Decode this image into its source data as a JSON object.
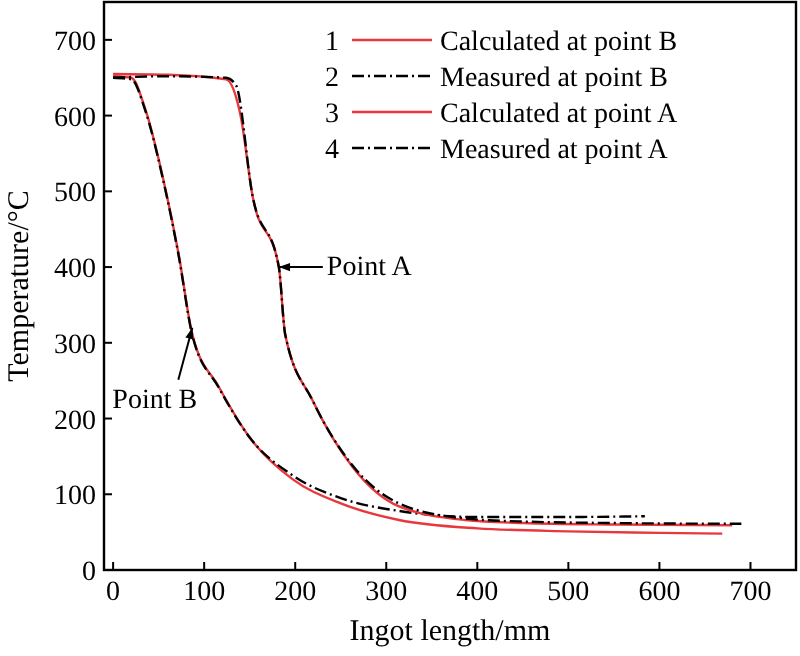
{
  "chart_data": {
    "type": "line",
    "xlabel": "Ingot length/mm",
    "ylabel": "Temperature/°C",
    "xlim": [
      -10,
      750
    ],
    "ylim": [
      0,
      750
    ],
    "xticks": [
      0,
      100,
      200,
      300,
      400,
      500,
      600,
      700
    ],
    "yticks": [
      0,
      100,
      200,
      300,
      400,
      500,
      600,
      700
    ],
    "grid": false,
    "legend": "top right",
    "marker": "none",
    "series": [
      {
        "name": "Calculated at point B",
        "color": "#e8383d",
        "line_style": "solid",
        "x": [
          0,
          20,
          35,
          54,
          72,
          87,
          116,
          150,
          197,
          250,
          314,
          400,
          500,
          600,
          669
        ],
        "values": [
          652,
          650,
          610,
          522,
          417,
          311,
          242,
          175,
          120,
          88,
          66,
          55,
          51,
          49,
          48
        ]
      },
      {
        "name": "Measured at point B",
        "color": "#000000",
        "line_style": "dashed",
        "x": [
          0,
          20,
          35,
          54,
          72,
          87,
          116,
          150,
          197,
          250,
          314,
          400,
          500,
          584
        ],
        "values": [
          650,
          648,
          608,
          520,
          415,
          310,
          241,
          175,
          125,
          95,
          78,
          70,
          70,
          71
        ]
      },
      {
        "name": "Calculated at point A",
        "color": "#e8383d",
        "line_style": "solid",
        "x": [
          0,
          60,
          124,
          140,
          153,
          182,
          189,
          219,
          263,
          314,
          387,
          450,
          550,
          680
        ],
        "values": [
          655,
          654,
          648,
          600,
          495,
          400,
          311,
          224,
          136,
          84,
          66,
          62,
          60,
          59
        ]
      },
      {
        "name": "Measured at point A",
        "color": "#000000",
        "line_style": "dashed",
        "x": [
          0,
          60,
          124,
          135,
          153,
          182,
          189,
          219,
          263,
          314,
          387,
          450,
          550,
          690
        ],
        "values": [
          650,
          652,
          650,
          640,
          495,
          400,
          311,
          224,
          138,
          88,
          68,
          64,
          62,
          61
        ]
      }
    ],
    "annotations": [
      {
        "text": "Point A",
        "x": 182,
        "y": 400
      },
      {
        "text": "Point B",
        "x": 87,
        "y": 320
      },
      "1",
      "2",
      "3",
      "4"
    ]
  }
}
